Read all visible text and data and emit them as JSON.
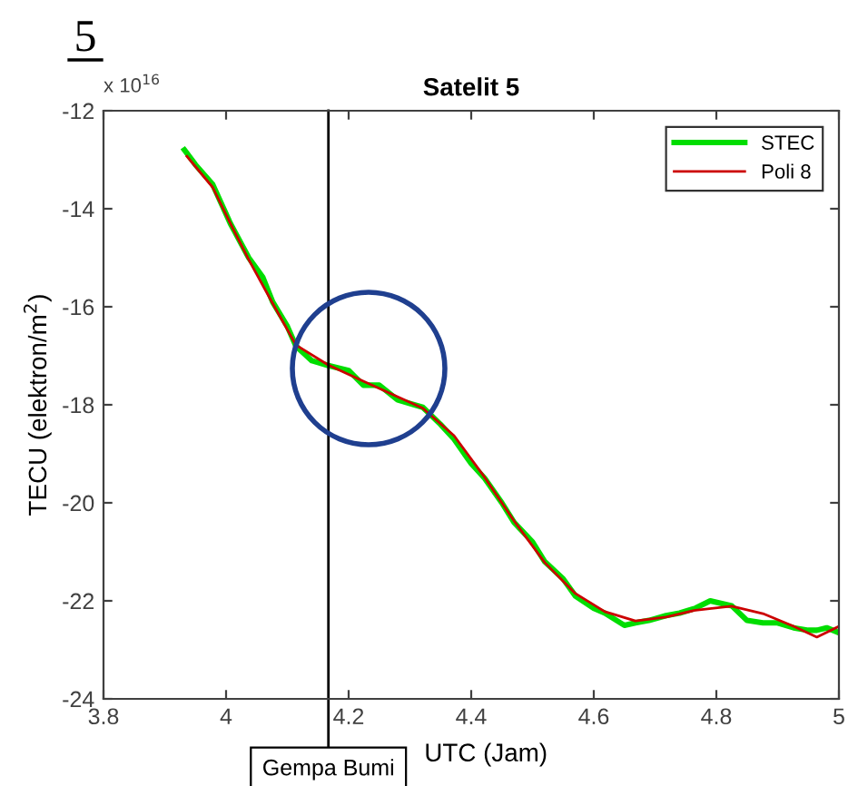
{
  "chart_data": {
    "type": "line",
    "title": "Satelit 5",
    "xlabel": "UTC (Jam)",
    "ylabel": "TECU (elektron/m$^{2}$)",
    "annotations": [
      "5",
      "x 10$^{16}$"
    ],
    "xlim": [
      3.8,
      5
    ],
    "xticks": [
      3.8,
      4,
      4.2,
      4.4,
      4.6,
      4.8,
      5
    ],
    "ylim": [
      -24,
      -12
    ],
    "yticks": [
      -24,
      -22,
      -20,
      -18,
      -16,
      -14,
      -12
    ],
    "grid": false,
    "legend": "top right",
    "ref_lines": [
      {
        "axis": "x",
        "value": 4.167,
        "label": "Gempa Bumi",
        "color": "#000000"
      }
    ],
    "series": [
      {
        "name": "STEC",
        "color": "#00dd00",
        "x": [
          3.932,
          3.95,
          3.978,
          4.007,
          4.037,
          4.06,
          4.076,
          4.1,
          4.114,
          4.14,
          4.167,
          4.2,
          4.224,
          4.25,
          4.28,
          4.321,
          4.35,
          4.372,
          4.4,
          4.422,
          4.45,
          4.47,
          4.5,
          4.52,
          4.55,
          4.57,
          4.6,
          4.618,
          4.65,
          4.668,
          4.69,
          4.718,
          4.74,
          4.766,
          4.79,
          4.825,
          4.85,
          4.876,
          4.9,
          4.926,
          4.95,
          4.964,
          4.98,
          5.0
        ],
        "values": [
          -12.8,
          -13.1,
          -13.5,
          -14.3,
          -15.0,
          -15.4,
          -15.9,
          -16.4,
          -16.8,
          -17.1,
          -17.2,
          -17.3,
          -17.6,
          -17.6,
          -17.9,
          -18.05,
          -18.4,
          -18.7,
          -19.2,
          -19.5,
          -20.0,
          -20.4,
          -20.8,
          -21.2,
          -21.55,
          -21.9,
          -22.15,
          -22.25,
          -22.5,
          -22.45,
          -22.4,
          -22.3,
          -22.25,
          -22.15,
          -22.0,
          -22.1,
          -22.4,
          -22.45,
          -22.45,
          -22.55,
          -22.6,
          -22.6,
          -22.55,
          -22.65
        ]
      },
      {
        "name": "Poli 8",
        "color": "#cc0000",
        "x": [
          3.936,
          3.978,
          4.007,
          4.037,
          4.076,
          4.114,
          4.167,
          4.224,
          4.321,
          4.372,
          4.422,
          4.47,
          4.52,
          4.57,
          4.618,
          4.668,
          4.718,
          4.766,
          4.825,
          4.876,
          4.926,
          4.964,
          5.0
        ],
        "values": [
          -12.93,
          -13.56,
          -14.3,
          -15.04,
          -15.93,
          -16.78,
          -17.19,
          -17.52,
          -18.07,
          -18.63,
          -19.48,
          -20.37,
          -21.22,
          -21.85,
          -22.22,
          -22.41,
          -22.33,
          -22.19,
          -22.11,
          -22.26,
          -22.52,
          -22.74,
          -22.52
        ]
      }
    ]
  }
}
